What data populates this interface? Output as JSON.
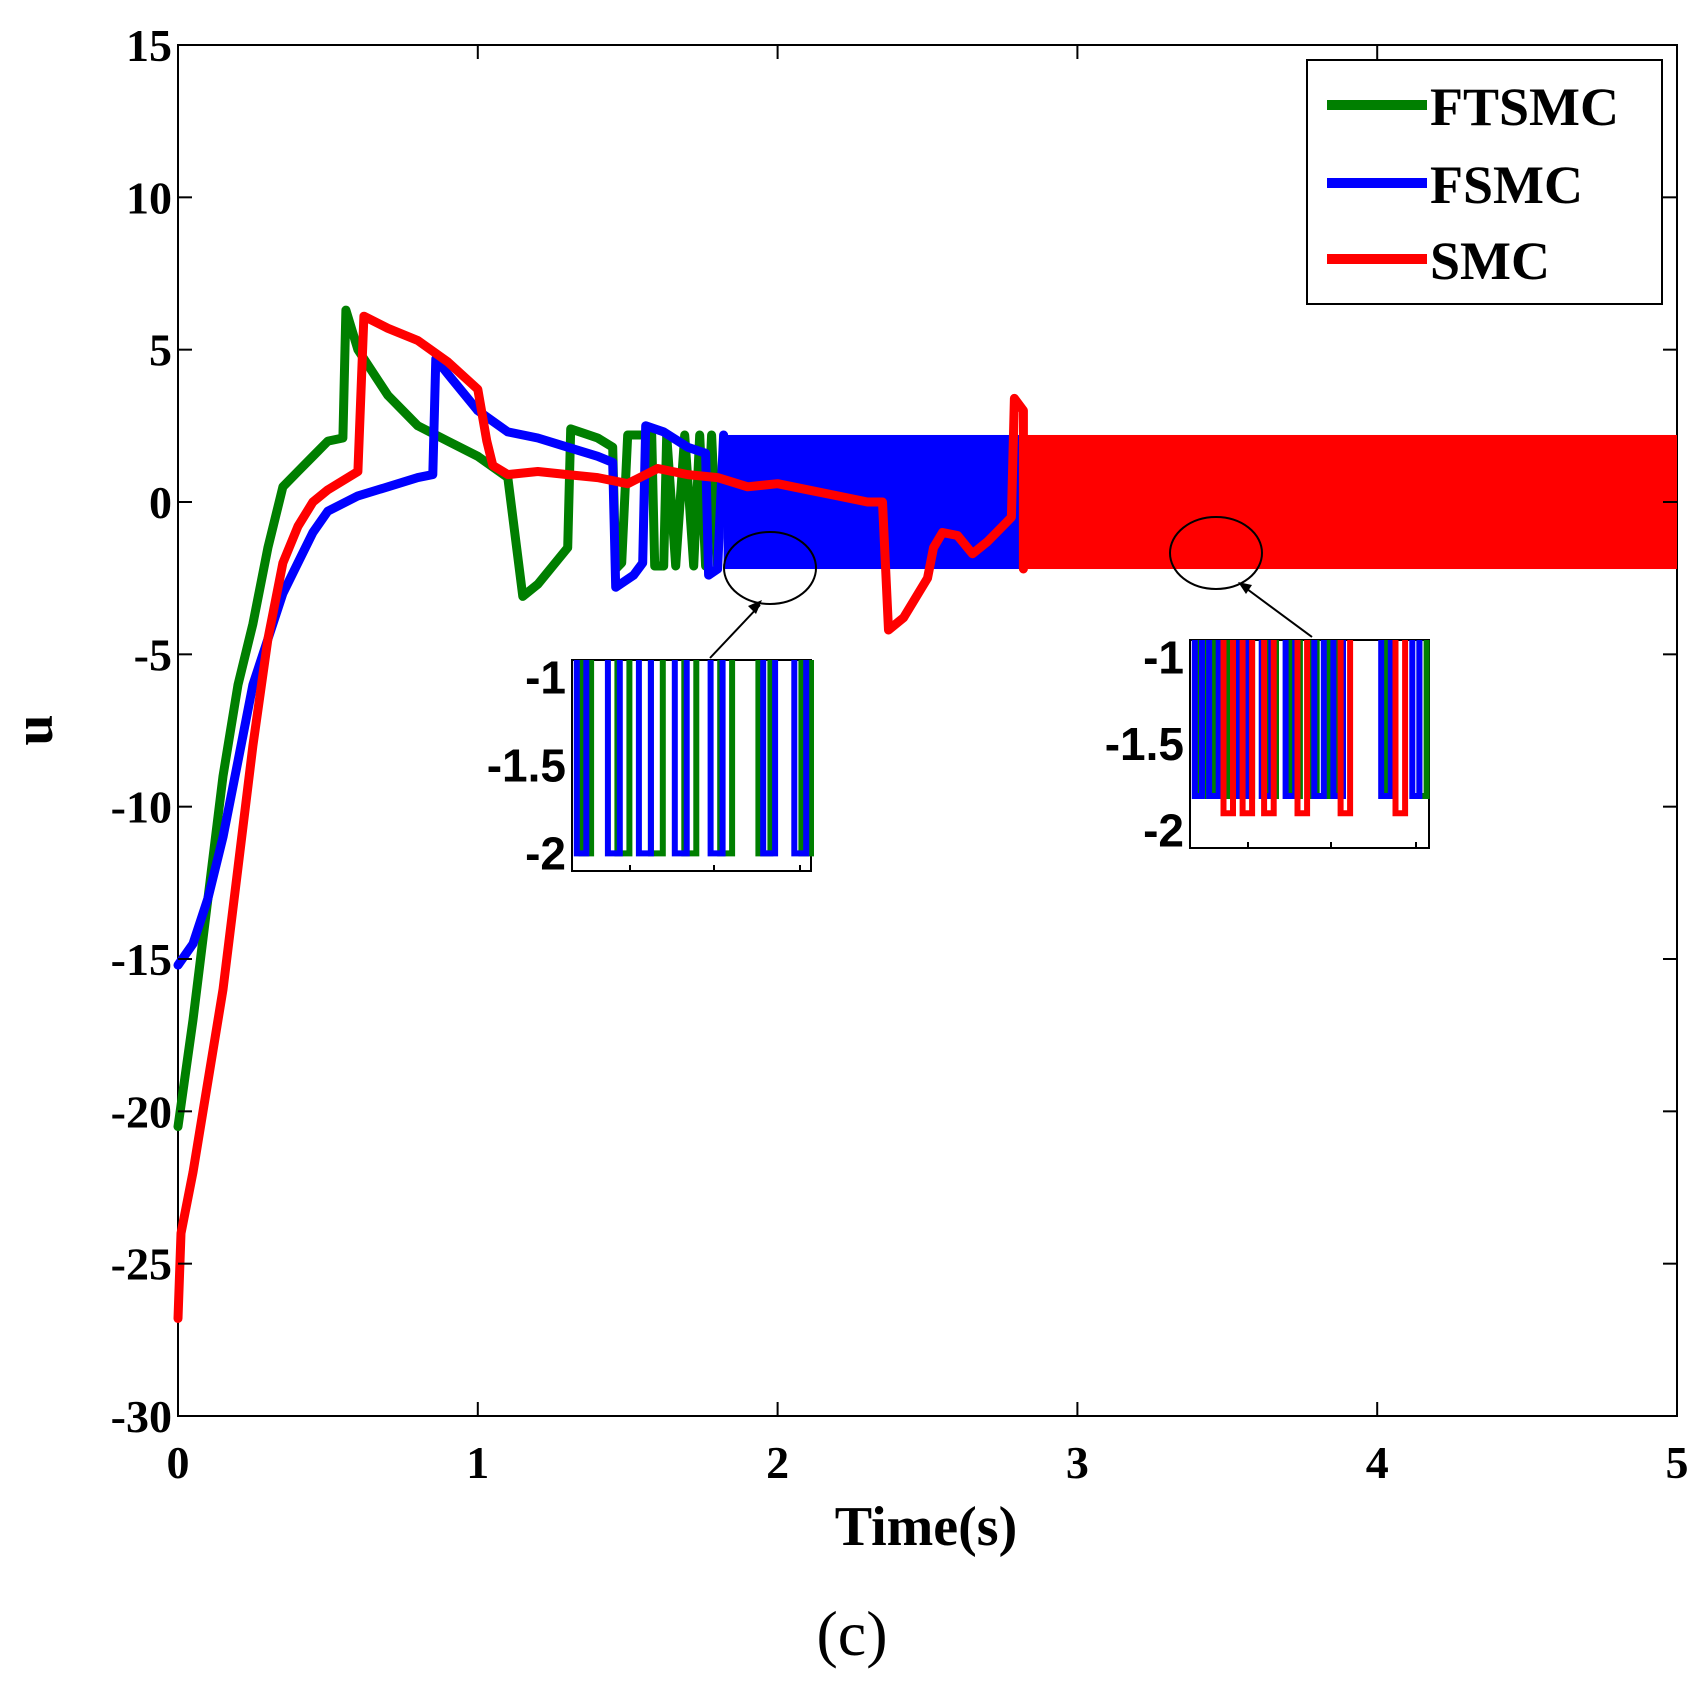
{
  "chart_data": {
    "type": "line",
    "xlabel": "Time(s)",
    "ylabel": "u",
    "caption": "(c)",
    "xlim": [
      0,
      5
    ],
    "ylim": [
      -30,
      15
    ],
    "xticks": [
      "0",
      "1",
      "2",
      "3",
      "4",
      "5"
    ],
    "yticks": [
      "-30",
      "-25",
      "-20",
      "-15",
      "-10",
      "-5",
      "0",
      "5",
      "10",
      "15"
    ],
    "legend_position": "top-right",
    "series": [
      {
        "name": "FTSMC",
        "color": "#007f00",
        "points": [
          [
            0,
            -20.5
          ],
          [
            0.05,
            -17
          ],
          [
            0.1,
            -13
          ],
          [
            0.15,
            -9
          ],
          [
            0.2,
            -6
          ],
          [
            0.25,
            -4
          ],
          [
            0.3,
            -1.5
          ],
          [
            0.35,
            0.5
          ],
          [
            0.4,
            1
          ],
          [
            0.45,
            1.5
          ],
          [
            0.5,
            2
          ],
          [
            0.55,
            2.1
          ],
          [
            0.56,
            6.3
          ],
          [
            0.6,
            5
          ],
          [
            0.7,
            3.5
          ],
          [
            0.8,
            2.5
          ],
          [
            0.9,
            2
          ],
          [
            1,
            1.5
          ],
          [
            1.1,
            0.8
          ],
          [
            1.15,
            -3.1
          ],
          [
            1.2,
            -2.7
          ],
          [
            1.3,
            -1.5
          ],
          [
            1.31,
            2.4
          ],
          [
            1.4,
            2.1
          ],
          [
            1.45,
            1.8
          ],
          [
            1.46,
            -2.2
          ],
          [
            1.48,
            -2
          ],
          [
            1.5,
            2.2
          ],
          [
            1.58,
            2.2
          ],
          [
            1.59,
            -2.1
          ],
          [
            1.62,
            -2.1
          ],
          [
            1.63,
            2.2
          ],
          [
            1.66,
            -2.1
          ],
          [
            1.69,
            2.2
          ],
          [
            1.72,
            -2.1
          ],
          [
            1.74,
            2.2
          ],
          [
            1.76,
            -2.1
          ],
          [
            1.78,
            2.2
          ],
          [
            1.8,
            -2.1
          ]
        ]
      },
      {
        "name": "FSMC",
        "color": "#0000ff",
        "points": [
          [
            0,
            -15.2
          ],
          [
            0.05,
            -14.5
          ],
          [
            0.1,
            -13
          ],
          [
            0.15,
            -11
          ],
          [
            0.2,
            -8.5
          ],
          [
            0.25,
            -6
          ],
          [
            0.3,
            -4.5
          ],
          [
            0.35,
            -3
          ],
          [
            0.4,
            -2
          ],
          [
            0.45,
            -1
          ],
          [
            0.5,
            -0.3
          ],
          [
            0.6,
            0.2
          ],
          [
            0.7,
            0.5
          ],
          [
            0.8,
            0.8
          ],
          [
            0.85,
            0.9
          ],
          [
            0.86,
            4.7
          ],
          [
            0.9,
            4.2
          ],
          [
            1,
            3
          ],
          [
            1.1,
            2.3
          ],
          [
            1.2,
            2.1
          ],
          [
            1.3,
            1.8
          ],
          [
            1.4,
            1.5
          ],
          [
            1.45,
            1.3
          ],
          [
            1.46,
            -2.8
          ],
          [
            1.52,
            -2.4
          ],
          [
            1.55,
            -2
          ],
          [
            1.56,
            2.5
          ],
          [
            1.62,
            2.3
          ],
          [
            1.7,
            1.8
          ],
          [
            1.76,
            1.6
          ],
          [
            1.77,
            -2.4
          ],
          [
            1.8,
            -2.2
          ],
          [
            1.82,
            2.2
          ]
        ],
        "band": {
          "x_start": 1.82,
          "x_end": 2.82,
          "low": -2.2,
          "high": 2.2
        }
      },
      {
        "name": "SMC",
        "color": "#ff0000",
        "points": [
          [
            0,
            -26.8
          ],
          [
            0.01,
            -24
          ],
          [
            0.03,
            -23
          ],
          [
            0.05,
            -22
          ],
          [
            0.1,
            -19
          ],
          [
            0.15,
            -16
          ],
          [
            0.2,
            -12
          ],
          [
            0.25,
            -8
          ],
          [
            0.3,
            -4.5
          ],
          [
            0.35,
            -2
          ],
          [
            0.4,
            -0.8
          ],
          [
            0.45,
            0
          ],
          [
            0.5,
            0.4
          ],
          [
            0.6,
            1
          ],
          [
            0.62,
            6.1
          ],
          [
            0.7,
            5.7
          ],
          [
            0.8,
            5.3
          ],
          [
            0.9,
            4.6
          ],
          [
            1,
            3.7
          ],
          [
            1.03,
            2
          ],
          [
            1.05,
            1.2
          ],
          [
            1.1,
            0.9
          ],
          [
            1.2,
            1
          ],
          [
            1.3,
            0.9
          ],
          [
            1.4,
            0.8
          ],
          [
            1.5,
            0.6
          ],
          [
            1.6,
            1.1
          ],
          [
            1.7,
            0.9
          ],
          [
            1.8,
            0.8
          ],
          [
            1.9,
            0.5
          ],
          [
            2,
            0.6
          ],
          [
            2.1,
            0.4
          ],
          [
            2.2,
            0.2
          ],
          [
            2.3,
            0
          ],
          [
            2.35,
            0
          ],
          [
            2.37,
            -4.2
          ],
          [
            2.42,
            -3.8
          ],
          [
            2.5,
            -2.5
          ],
          [
            2.52,
            -1.5
          ],
          [
            2.55,
            -1
          ],
          [
            2.6,
            -1.1
          ],
          [
            2.65,
            -1.7
          ],
          [
            2.7,
            -1.3
          ],
          [
            2.75,
            -0.8
          ],
          [
            2.78,
            -0.5
          ],
          [
            2.79,
            3.4
          ],
          [
            2.82,
            3
          ],
          [
            2.82,
            -2.2
          ]
        ],
        "band": {
          "x_start": 2.82,
          "x_end": 5,
          "low": -2.2,
          "high": 2.2
        }
      }
    ],
    "insets": [
      {
        "yticks": [
          "-1",
          "-1.5",
          "-2"
        ],
        "ylim": [
          -2.1,
          -0.9
        ],
        "series_traces": [
          {
            "series": "FTSMC",
            "xs": [
              0.04,
              0.08,
              0.19,
              0.24,
              0.33,
              0.38,
              0.47,
              0.52,
              0.62,
              0.67,
              0.78,
              0.83,
              0.96,
              1.0
            ],
            "low": -2.0,
            "high": -0.9
          },
          {
            "series": "FSMC",
            "xs": [
              0.02,
              0.06,
              0.15,
              0.2,
              0.28,
              0.33,
              0.43,
              0.48,
              0.58,
              0.63,
              0.8,
              0.85,
              0.93,
              0.98
            ],
            "low": -2.0,
            "high": -0.9
          }
        ]
      },
      {
        "yticks": [
          "-1",
          "-1.5",
          "-2"
        ],
        "ylim": [
          -2.1,
          -0.9
        ],
        "series_traces": [
          {
            "series": "FTSMC",
            "xs": [
              0.03,
              0.06,
              0.1,
              0.13,
              0.16,
              0.2,
              0.23,
              0.26,
              0.33,
              0.36,
              0.42,
              0.46,
              0.5,
              0.53,
              0.58,
              0.62,
              0.82,
              0.86,
              0.96,
              0.99
            ],
            "low": -1.8,
            "high": -0.9
          },
          {
            "series": "FSMC",
            "xs": [
              0.02,
              0.05,
              0.08,
              0.12,
              0.2,
              0.24,
              0.3,
              0.34,
              0.4,
              0.44,
              0.52,
              0.56,
              0.6,
              0.64,
              0.8,
              0.84,
              0.93,
              0.96
            ],
            "low": -1.8,
            "high": -0.9
          },
          {
            "series": "SMC",
            "xs": [
              0.14,
              0.18,
              0.22,
              0.26,
              0.31,
              0.35,
              0.45,
              0.49,
              0.63,
              0.67,
              0.86,
              0.9
            ],
            "low": -1.9,
            "high": -0.9
          }
        ]
      }
    ]
  }
}
